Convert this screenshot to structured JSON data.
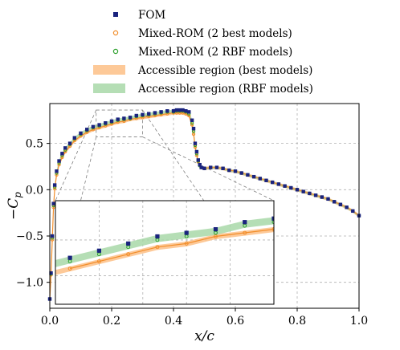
{
  "chart_data": {
    "type": "line",
    "xlabel": "x/c",
    "ylabel": "−C_p",
    "ylabel_main": "−C",
    "ylabel_sub": "p",
    "xlim": [
      0.0,
      1.0
    ],
    "ylim": [
      -1.28,
      0.93
    ],
    "grid": true,
    "legend_placement": "top-center",
    "xticks": [
      "0.0",
      "0.2",
      "0.4",
      "0.6",
      "0.8",
      "1.0"
    ],
    "yticks": [
      "0.5",
      "0.0",
      "−0.5",
      "−1.0"
    ],
    "colors": {
      "fom": "#1a237e",
      "best": "#f28e2b",
      "rbf": "#2ca02c",
      "best_fill": "#fdbf86",
      "rbf_fill": "#a8d8a8"
    },
    "legend": [
      {
        "label": "FOM",
        "marker": "square",
        "color": "#1a237e"
      },
      {
        "label": "Mixed-ROM (2 best models)",
        "marker": "circle",
        "color": "#f28e2b"
      },
      {
        "label": "Mixed-ROM (2 RBF models)",
        "marker": "circle",
        "color": "#2ca02c"
      },
      {
        "label": "Accessible region (best models)",
        "marker": "patch",
        "color": "#fdbf86"
      },
      {
        "label": "Accessible region (RBF models)",
        "marker": "patch",
        "color": "#a8d8a8"
      }
    ],
    "series": [
      {
        "name": "FOM",
        "x": [
          0.0,
          0.004,
          0.008,
          0.012,
          0.016,
          0.022,
          0.03,
          0.04,
          0.05,
          0.065,
          0.08,
          0.1,
          0.12,
          0.14,
          0.16,
          0.18,
          0.2,
          0.22,
          0.24,
          0.26,
          0.28,
          0.3,
          0.32,
          0.34,
          0.36,
          0.38,
          0.4,
          0.41,
          0.42,
          0.43,
          0.44,
          0.45,
          0.46,
          0.465,
          0.47,
          0.475,
          0.48,
          0.485,
          0.49,
          0.5,
          0.52,
          0.54,
          0.56,
          0.58,
          0.6,
          0.62,
          0.64,
          0.66,
          0.68,
          0.7,
          0.72,
          0.74,
          0.76,
          0.78,
          0.8,
          0.82,
          0.84,
          0.86,
          0.88,
          0.9,
          0.92,
          0.94,
          0.96,
          0.98,
          1.0
        ],
        "y": [
          -1.18,
          -0.9,
          -0.5,
          -0.15,
          0.05,
          0.2,
          0.31,
          0.39,
          0.45,
          0.5,
          0.56,
          0.61,
          0.65,
          0.68,
          0.7,
          0.72,
          0.74,
          0.76,
          0.77,
          0.78,
          0.8,
          0.81,
          0.82,
          0.83,
          0.84,
          0.85,
          0.85,
          0.86,
          0.86,
          0.86,
          0.85,
          0.84,
          0.75,
          0.66,
          0.5,
          0.41,
          0.32,
          0.27,
          0.24,
          0.23,
          0.24,
          0.24,
          0.23,
          0.21,
          0.2,
          0.18,
          0.16,
          0.14,
          0.12,
          0.1,
          0.08,
          0.06,
          0.04,
          0.02,
          0.0,
          -0.02,
          -0.04,
          -0.06,
          -0.08,
          -0.1,
          -0.13,
          -0.16,
          -0.19,
          -0.23,
          -0.28
        ]
      },
      {
        "name": "Mixed-ROM (2 best models)",
        "x": [
          0.0,
          0.004,
          0.008,
          0.012,
          0.016,
          0.022,
          0.03,
          0.04,
          0.05,
          0.065,
          0.08,
          0.1,
          0.12,
          0.14,
          0.16,
          0.18,
          0.2,
          0.22,
          0.24,
          0.26,
          0.28,
          0.3,
          0.32,
          0.34,
          0.36,
          0.38,
          0.4,
          0.41,
          0.42,
          0.43,
          0.44,
          0.45,
          0.46,
          0.465,
          0.47,
          0.475,
          0.48,
          0.485,
          0.49,
          0.5,
          0.52,
          0.54,
          0.56,
          0.58,
          0.6,
          0.62,
          0.64,
          0.66,
          0.68,
          0.7,
          0.72,
          0.74,
          0.76,
          0.78,
          0.8,
          0.82,
          0.84,
          0.86,
          0.88,
          0.9,
          0.92,
          0.94,
          0.96,
          0.98,
          1.0
        ],
        "y": [
          -1.18,
          -0.92,
          -0.54,
          -0.19,
          0.01,
          0.16,
          0.27,
          0.35,
          0.41,
          0.47,
          0.53,
          0.58,
          0.62,
          0.65,
          0.67,
          0.69,
          0.71,
          0.73,
          0.74,
          0.76,
          0.77,
          0.78,
          0.79,
          0.8,
          0.81,
          0.82,
          0.83,
          0.83,
          0.83,
          0.83,
          0.82,
          0.8,
          0.7,
          0.6,
          0.46,
          0.37,
          0.3,
          0.26,
          0.24,
          0.23,
          0.24,
          0.24,
          0.23,
          0.21,
          0.2,
          0.18,
          0.16,
          0.14,
          0.12,
          0.1,
          0.08,
          0.06,
          0.04,
          0.02,
          0.0,
          -0.02,
          -0.04,
          -0.06,
          -0.08,
          -0.1,
          -0.13,
          -0.16,
          -0.19,
          -0.23,
          -0.28
        ]
      },
      {
        "name": "Mixed-ROM (2 RBF models)",
        "x": [
          0.0,
          0.004,
          0.008,
          0.012,
          0.016,
          0.022,
          0.03,
          0.04,
          0.05,
          0.065,
          0.08,
          0.1,
          0.12,
          0.14,
          0.16,
          0.18,
          0.2,
          0.22,
          0.24,
          0.26,
          0.28,
          0.3,
          0.32,
          0.34,
          0.36,
          0.38,
          0.4,
          0.41,
          0.42,
          0.43,
          0.44,
          0.45,
          0.46,
          0.465,
          0.47,
          0.475,
          0.48,
          0.485,
          0.49,
          0.5,
          0.52,
          0.54,
          0.56,
          0.58,
          0.6,
          0.62,
          0.64,
          0.66,
          0.68,
          0.7,
          0.72,
          0.74,
          0.76,
          0.78,
          0.8,
          0.82,
          0.84,
          0.86,
          0.88,
          0.9,
          0.92,
          0.94,
          0.96,
          0.98,
          1.0
        ],
        "y": [
          -1.18,
          -0.91,
          -0.52,
          -0.17,
          0.03,
          0.18,
          0.29,
          0.37,
          0.43,
          0.49,
          0.55,
          0.6,
          0.64,
          0.67,
          0.69,
          0.71,
          0.73,
          0.75,
          0.76,
          0.77,
          0.79,
          0.8,
          0.81,
          0.82,
          0.83,
          0.84,
          0.84,
          0.85,
          0.85,
          0.85,
          0.84,
          0.82,
          0.72,
          0.63,
          0.48,
          0.39,
          0.31,
          0.26,
          0.24,
          0.23,
          0.24,
          0.24,
          0.23,
          0.21,
          0.2,
          0.18,
          0.16,
          0.14,
          0.12,
          0.1,
          0.08,
          0.06,
          0.04,
          0.02,
          0.0,
          -0.02,
          -0.04,
          -0.06,
          -0.08,
          -0.1,
          -0.13,
          -0.16,
          -0.19,
          -0.23,
          -0.28
        ]
      }
    ]
  }
}
